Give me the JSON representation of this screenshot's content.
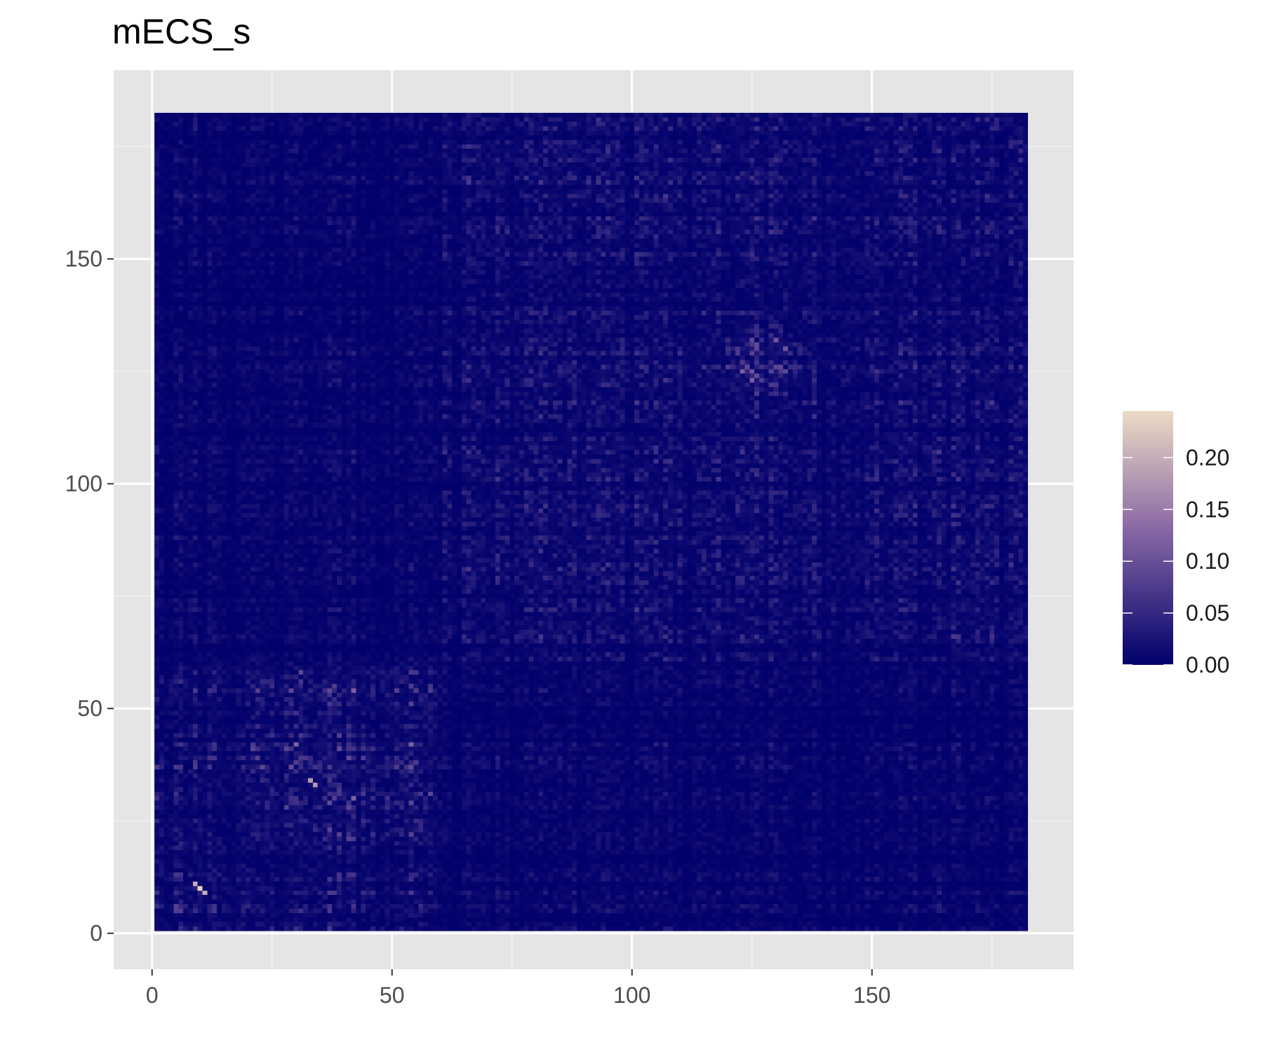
{
  "chart_data": {
    "type": "heatmap",
    "title": "mECS_s",
    "xlabel": "",
    "ylabel": "",
    "x_range": [
      1,
      182
    ],
    "y_range": [
      1,
      182
    ],
    "xlim": [
      -8,
      192
    ],
    "ylim": [
      -8,
      192
    ],
    "x_ticks": [
      0,
      50,
      100,
      150
    ],
    "x_tick_labels": [
      "0",
      "50",
      "100",
      "150"
    ],
    "y_ticks": [
      0,
      50,
      100,
      150
    ],
    "y_tick_labels": [
      "0",
      "50",
      "100",
      "150"
    ],
    "grid": true,
    "background": "#e5e5e5",
    "color_scale": {
      "min": 0.0,
      "max": 0.245,
      "low_color": "#00006b",
      "mid_color": "#8c6ba6",
      "high_color": "#ecdcc4"
    },
    "legend": {
      "placement": "right",
      "title": "",
      "ticks": [
        0.0,
        0.05,
        0.1,
        0.15,
        0.2
      ],
      "tick_labels": [
        "0.00",
        "0.05",
        "0.10",
        "0.15",
        "0.20"
      ]
    },
    "blocks": [
      {
        "x": [
          1,
          60
        ],
        "y": [
          1,
          60
        ],
        "mean": 0.035
      },
      {
        "x": [
          21,
          58
        ],
        "y": [
          21,
          58
        ],
        "mean": 0.06
      },
      {
        "x": [
          61,
          182
        ],
        "y": [
          61,
          182
        ],
        "mean": 0.03
      },
      {
        "x": [
          120,
          135
        ],
        "y": [
          120,
          135
        ],
        "mean": 0.07
      },
      {
        "x": [
          1,
          60
        ],
        "y": [
          61,
          182
        ],
        "mean": 0.015
      },
      {
        "x": [
          61,
          182
        ],
        "y": [
          1,
          60
        ],
        "mean": 0.012
      }
    ],
    "highlights": [
      {
        "x": 10,
        "y": 10,
        "value": 0.24
      },
      {
        "x": 9,
        "y": 11,
        "value": 0.2
      },
      {
        "x": 33,
        "y": 34,
        "value": 0.18
      }
    ]
  }
}
